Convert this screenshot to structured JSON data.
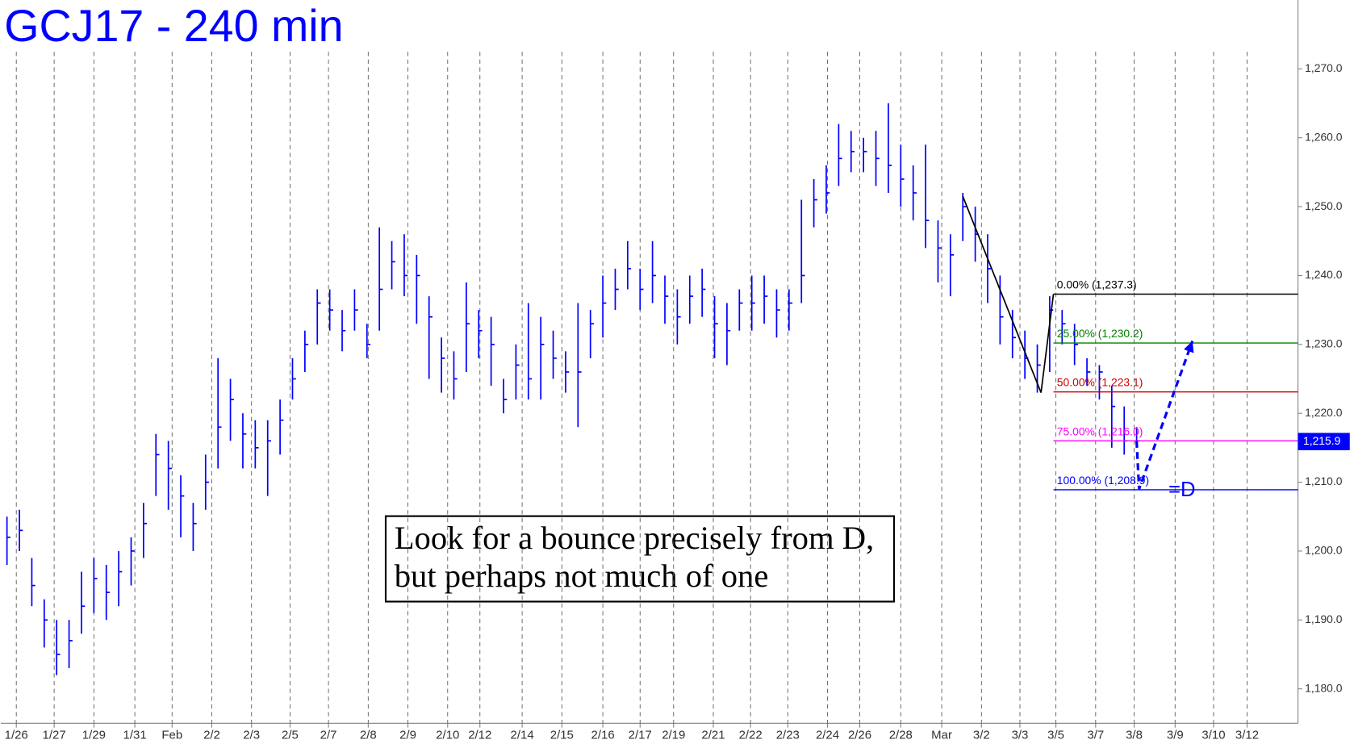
{
  "chart_data": {
    "type": "ohlc",
    "title": "GCJ17 - 240 min",
    "xlim": [
      -0.5,
      104
    ],
    "ylim": [
      1175,
      1280
    ],
    "yticks": [
      {
        "value": 1180,
        "label": "1,180.0"
      },
      {
        "value": 1190,
        "label": "1,190.0"
      },
      {
        "value": 1200,
        "label": "1,200.0"
      },
      {
        "value": 1210,
        "label": "1,210.0"
      },
      {
        "value": 1220,
        "label": "1,220.0"
      },
      {
        "value": 1230,
        "label": "1,230.0"
      },
      {
        "value": 1240,
        "label": "1,240.0"
      },
      {
        "value": 1250,
        "label": "1,250.0"
      },
      {
        "value": 1260,
        "label": "1,260.0"
      },
      {
        "value": 1270,
        "label": "1,270.0"
      }
    ],
    "xticks": [
      {
        "value": 0.75,
        "label": "1/26"
      },
      {
        "value": 3.8,
        "label": "1/27"
      },
      {
        "value": 7.0,
        "label": "1/29"
      },
      {
        "value": 10.3,
        "label": "1/31"
      },
      {
        "value": 13.3,
        "label": "Feb"
      },
      {
        "value": 16.5,
        "label": "2/2"
      },
      {
        "value": 19.7,
        "label": "2/3"
      },
      {
        "value": 22.8,
        "label": "2/5"
      },
      {
        "value": 25.9,
        "label": "2/7"
      },
      {
        "value": 29.1,
        "label": "2/8"
      },
      {
        "value": 32.3,
        "label": "2/9"
      },
      {
        "value": 35.5,
        "label": "2/10"
      },
      {
        "value": 38.1,
        "label": "2/12"
      },
      {
        "value": 41.5,
        "label": "2/14"
      },
      {
        "value": 44.7,
        "label": "2/15"
      },
      {
        "value": 48.0,
        "label": "2/16"
      },
      {
        "value": 51.0,
        "label": "2/17"
      },
      {
        "value": 53.7,
        "label": "2/19"
      },
      {
        "value": 56.9,
        "label": "2/21"
      },
      {
        "value": 59.9,
        "label": "2/22"
      },
      {
        "value": 62.9,
        "label": "2/23"
      },
      {
        "value": 66.1,
        "label": "2/24"
      },
      {
        "value": 68.7,
        "label": "2/26"
      },
      {
        "value": 72.0,
        "label": "2/28"
      },
      {
        "value": 75.3,
        "label": "Mar"
      },
      {
        "value": 78.5,
        "label": "3/2"
      },
      {
        "value": 81.6,
        "label": "3/3"
      },
      {
        "value": 84.5,
        "label": "3/5"
      },
      {
        "value": 87.7,
        "label": "3/7"
      },
      {
        "value": 90.8,
        "label": "3/8"
      },
      {
        "value": 94.1,
        "label": "3/9"
      },
      {
        "value": 97.2,
        "label": "3/10"
      },
      {
        "value": 99.9,
        "label": "3/12"
      }
    ],
    "grid": true,
    "color": "#0000ff",
    "high": [
      1205,
      1206,
      1199,
      1193,
      1190,
      1190,
      1197,
      1199,
      1198,
      1200,
      1202,
      1207,
      1217,
      1216,
      1211,
      1207,
      1214,
      1228,
      1225,
      1220,
      1219,
      1219,
      1222,
      1228,
      1232,
      1238,
      1238,
      1235,
      1238,
      1233,
      1247,
      1245,
      1246,
      1243,
      1237,
      1231,
      1229,
      1239,
      1235,
      1234,
      1225,
      1230,
      1236,
      1234,
      1232,
      1229,
      1236,
      1235,
      1240,
      1241,
      1245,
      1241,
      1245,
      1240,
      1238,
      1240,
      1241,
      1237,
      1236,
      1238,
      1240,
      1240,
      1238,
      1238,
      1251,
      1254,
      1256,
      1262,
      1261,
      1260,
      1261,
      1265,
      1259,
      1256,
      1259,
      1248,
      1246,
      1252,
      1250,
      1246,
      1240,
      1235,
      1232,
      1230,
      1237,
      1235,
      1233,
      1228,
      1227,
      1224,
      1221,
      1218
    ],
    "low": [
      1198,
      1200,
      1192,
      1186,
      1182,
      1183,
      1188,
      1191,
      1190,
      1192,
      1195,
      1199,
      1208,
      1206,
      1202,
      1200,
      1206,
      1212,
      1216,
      1212,
      1212,
      1208,
      1214,
      1222,
      1226,
      1230,
      1232,
      1229,
      1232,
      1228,
      1232,
      1238,
      1237,
      1233,
      1225,
      1223,
      1222,
      1226,
      1228,
      1224,
      1220,
      1222,
      1222,
      1222,
      1225,
      1223,
      1218,
      1228,
      1231,
      1235,
      1238,
      1235,
      1236,
      1233,
      1230,
      1233,
      1234,
      1228,
      1227,
      1232,
      1232,
      1233,
      1231,
      1232,
      1236,
      1247,
      1249,
      1253,
      1255,
      1255,
      1253,
      1252,
      1250,
      1248,
      1244,
      1239,
      1237,
      1245,
      1242,
      1236,
      1230,
      1228,
      1225,
      1223,
      1226,
      1230,
      1227,
      1224,
      1222,
      1215,
      1214,
      1215
    ],
    "close": [
      1202,
      1203,
      1195,
      1190,
      1185,
      1187,
      1192,
      1196,
      1194,
      1197,
      1200,
      1204,
      1214,
      1212,
      1208,
      1204,
      1210,
      1218,
      1222,
      1217,
      1215,
      1216,
      1219,
      1225,
      1230,
      1236,
      1235,
      1232,
      1235,
      1230,
      1238,
      1242,
      1240,
      1240,
      1234,
      1228,
      1225,
      1233,
      1232,
      1230,
      1222,
      1227,
      1225,
      1230,
      1228,
      1226,
      1226,
      1233,
      1236,
      1238,
      1241,
      1238,
      1240,
      1237,
      1234,
      1237,
      1238,
      1233,
      1232,
      1236,
      1236,
      1237,
      1235,
      1236,
      1240,
      1251,
      1252,
      1257,
      1258,
      1258,
      1257,
      1256,
      1254,
      1252,
      1248,
      1244,
      1243,
      1250,
      1246,
      1241,
      1234,
      1231,
      1228,
      1227,
      1235,
      1233,
      1230,
      1226,
      1226,
      1221,
      1216,
      1216
    ],
    "fib_levels": [
      {
        "value": 1237.3,
        "label": "0.00% (1,237.3)",
        "color": "#000000"
      },
      {
        "value": 1230.2,
        "label": "25.00% (1,230.2)",
        "color": "#008000"
      },
      {
        "value": 1223.1,
        "label": "50.00% (1,223.1)",
        "color": "#cc0000"
      },
      {
        "value": 1216.0,
        "label": "75.00% (1,216.0)",
        "color": "#ff00ff"
      },
      {
        "value": 1208.9,
        "label": "100.00% (1,208.9)",
        "color": "#0000ff"
      }
    ],
    "fib_start_x": 84.3,
    "pattern": {
      "x": [
        77.0,
        83.3,
        84.3
      ],
      "y": [
        1251.5,
        1223,
        1237.3
      ],
      "color": "#000000"
    },
    "projection": {
      "x": [
        91.0,
        91.2,
        95.5
      ],
      "y": [
        1216,
        1209,
        1230.5
      ],
      "color": "#0000ff"
    },
    "d_label": "=D",
    "last_price": {
      "value": 1215.9,
      "label": "1,215.9"
    },
    "annotation": [
      "Look for a bounce precisely from D,",
      "but perhaps not much of one"
    ]
  }
}
